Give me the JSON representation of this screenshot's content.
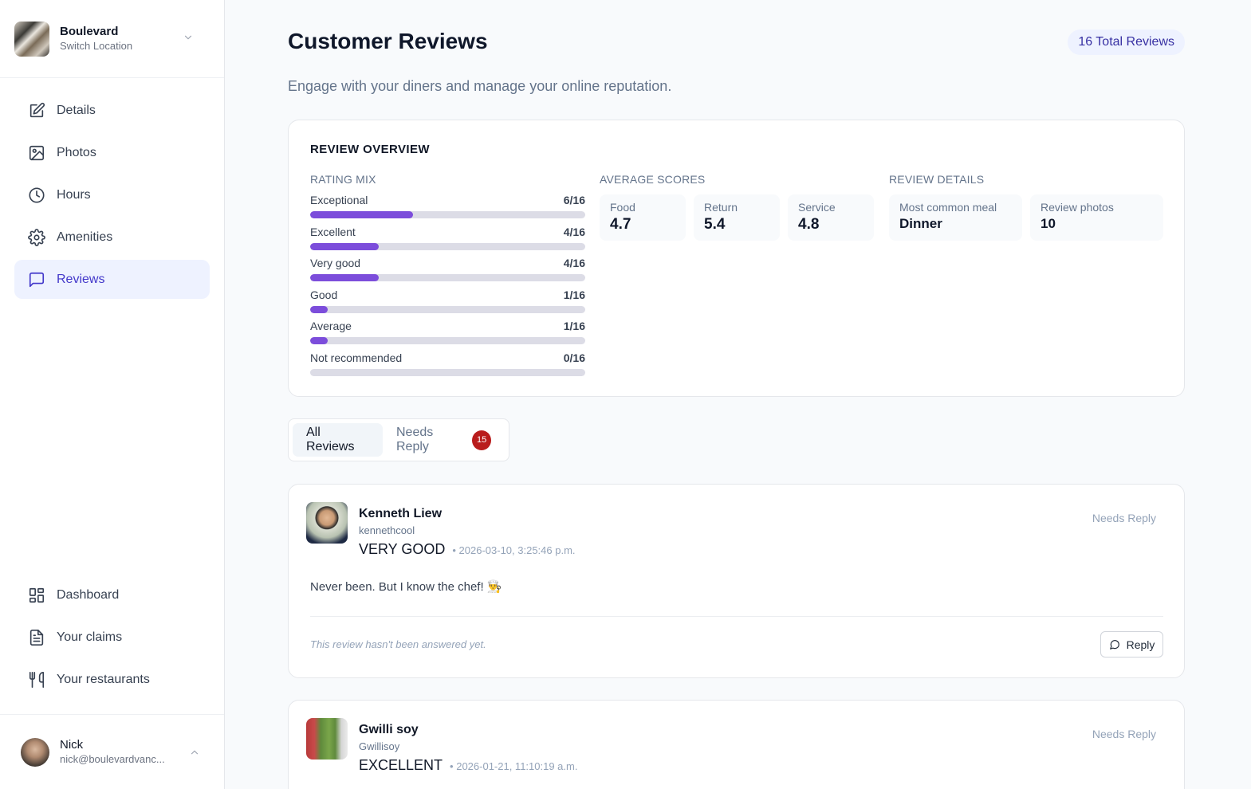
{
  "location": {
    "name": "Boulevard",
    "switch_label": "Switch Location"
  },
  "sidebar": {
    "top_items": [
      {
        "label": "Details",
        "icon": "edit-icon"
      },
      {
        "label": "Photos",
        "icon": "image-icon"
      },
      {
        "label": "Hours",
        "icon": "clock-icon"
      },
      {
        "label": "Amenities",
        "icon": "gear-icon"
      },
      {
        "label": "Reviews",
        "icon": "message-square-icon",
        "active": true
      }
    ],
    "bottom_items": [
      {
        "label": "Dashboard",
        "icon": "dashboard-icon"
      },
      {
        "label": "Your claims",
        "icon": "document-icon"
      },
      {
        "label": "Your restaurants",
        "icon": "utensils-icon"
      }
    ]
  },
  "user": {
    "name": "Nick",
    "email": "nick@boulevardvanc..."
  },
  "header": {
    "title": "Customer Reviews",
    "total_badge": "16 Total Reviews",
    "subtitle": "Engage with your diners and manage your online reputation."
  },
  "overview": {
    "title": "REVIEW OVERVIEW",
    "rating_mix_label": "RATING MIX",
    "rating_mix": [
      {
        "label": "Exceptional",
        "count": "6/16",
        "value": 6
      },
      {
        "label": "Excellent",
        "count": "4/16",
        "value": 4
      },
      {
        "label": "Very good",
        "count": "4/16",
        "value": 4
      },
      {
        "label": "Good",
        "count": "1/16",
        "value": 1
      },
      {
        "label": "Average",
        "count": "1/16",
        "value": 1
      },
      {
        "label": "Not recommended",
        "count": "0/16",
        "value": 0
      }
    ],
    "total": 16,
    "average_scores_label": "AVERAGE SCORES",
    "average_scores": [
      {
        "label": "Food",
        "value": "4.7"
      },
      {
        "label": "Return",
        "value": "5.4"
      },
      {
        "label": "Service",
        "value": "4.8"
      }
    ],
    "review_details_label": "REVIEW DETAILS",
    "review_details": [
      {
        "label": "Most common meal",
        "value": "Dinner"
      },
      {
        "label": "Review photos",
        "value": "10"
      }
    ]
  },
  "tabs": {
    "all_label": "All Reviews",
    "needs_reply_label": "Needs Reply",
    "needs_reply_count": "15"
  },
  "reviews": [
    {
      "name": "Kenneth Liew",
      "handle": "kennethcool",
      "rating": "VERY GOOD",
      "date": "• 2026-03-10, 3:25:46 p.m.",
      "status": "Needs Reply",
      "text": "Never been. But I know the chef! 👨‍🍳",
      "unanswered": "This review hasn't been answered yet.",
      "reply_label": "Reply"
    },
    {
      "name": "Gwilli soy",
      "handle": "Gwillisoy",
      "rating": "EXCELLENT",
      "date": "• 2026-01-21, 11:10:19 a.m.",
      "status": "Needs Reply"
    }
  ],
  "colors": {
    "accent": "#4338ca",
    "bar_fill": "#7c4ddb",
    "bar_track": "#dcdce6",
    "badge_red": "#b91c1c"
  }
}
